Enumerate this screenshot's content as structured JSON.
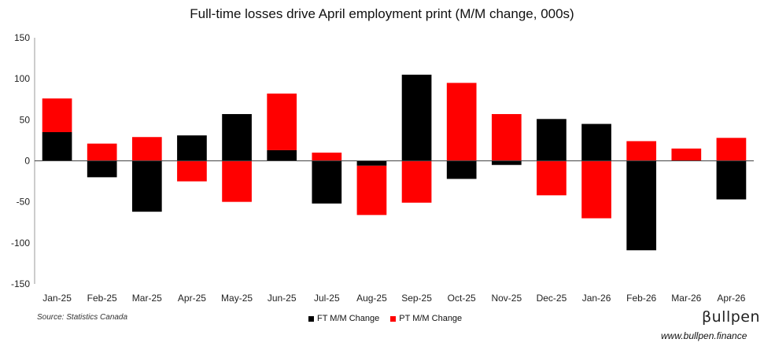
{
  "chart_data": {
    "type": "bar",
    "stacked": true,
    "title": "Full-time losses drive April employment print (M/M change, 000s)",
    "categories": [
      "Jan-25",
      "Feb-25",
      "Mar-25",
      "Apr-25",
      "May-25",
      "Jun-25",
      "Jul-25",
      "Aug-25",
      "Sep-25",
      "Oct-25",
      "Nov-25",
      "Dec-25",
      "Jan-26",
      "Feb-26",
      "Mar-26",
      "Apr-26"
    ],
    "series": [
      {
        "name": "FT M/M Change",
        "color": "#000000",
        "values": [
          35,
          -20,
          -62,
          31,
          57,
          13,
          -52,
          -6,
          105,
          -22,
          -5,
          51,
          45,
          -109,
          0,
          -47
        ]
      },
      {
        "name": "PT M/M Change",
        "color": "#ff0000",
        "values": [
          41,
          21,
          29,
          -25,
          -50,
          69,
          10,
          -60,
          -51,
          95,
          57,
          -42,
          -70,
          24,
          15,
          28
        ]
      }
    ],
    "ylim": [
      -150,
      150
    ],
    "yticks": [
      "150",
      "100",
      "50",
      "0",
      "-50",
      "-100",
      "-150"
    ],
    "grid": false,
    "legend_position": "bottom"
  },
  "footer": {
    "source": "Source: Statistics Canada",
    "brand": "βullpen",
    "website": "www.bullpen.finance"
  }
}
